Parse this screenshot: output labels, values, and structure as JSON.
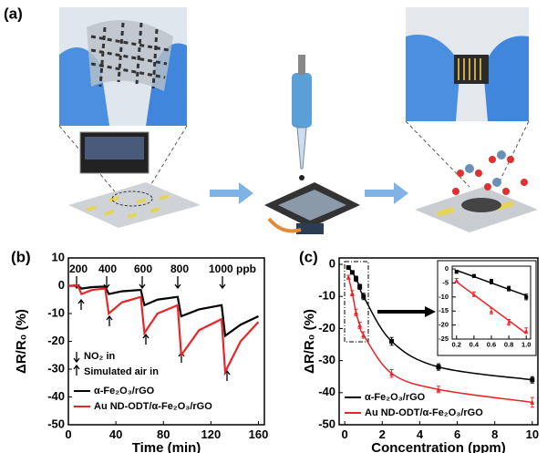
{
  "panels": {
    "a": "(a)",
    "b": "(b)",
    "c": "(c)"
  },
  "chart_data": [
    {
      "type": "line",
      "xlabel": "Time (min)",
      "ylabel": "ΔR/R₀ (%)",
      "x": [
        0,
        8,
        11,
        20,
        31,
        34,
        45,
        61,
        64,
        75,
        92,
        95,
        110,
        129,
        132,
        145,
        160
      ],
      "xlim": [
        0,
        165
      ],
      "xticks": [
        0,
        40,
        80,
        120,
        160
      ],
      "ylim": [
        -50,
        10
      ],
      "yticks": [
        10,
        0,
        -10,
        -20,
        -30,
        -40,
        -50
      ],
      "series": [
        {
          "name": "α-Fe₂O₃/rGO",
          "color": "#000000",
          "values": [
            0,
            0,
            -1,
            -0.5,
            -0.3,
            -3,
            -2,
            -1.5,
            -7,
            -5,
            -4,
            -11,
            -8.5,
            -7,
            -18,
            -14,
            -11
          ]
        },
        {
          "name": "Au ND-ODT/α-Fe₂O₃/rGO",
          "color": "#e8262a",
          "values": [
            0,
            0,
            -3,
            -1.5,
            -1,
            -10,
            -6,
            -4,
            -17,
            -10,
            -7,
            -25,
            -16,
            -12,
            -31,
            -20,
            -13
          ]
        }
      ],
      "annotations": [
        "200",
        "400",
        "600",
        "800",
        "1000 ppb"
      ],
      "arrow_legend": [
        "NO₂ in",
        "Simulated air in"
      ],
      "legend": "lower left"
    },
    {
      "type": "scatter",
      "xlabel": "Concentration (ppm)",
      "ylabel": "ΔR/R₀ (%)",
      "xlim": [
        -0.3,
        10.3
      ],
      "xticks": [
        0,
        2,
        4,
        6,
        8,
        10
      ],
      "ylim": [
        -50,
        2
      ],
      "yticks": [
        0,
        -10,
        -20,
        -30,
        -40,
        -50
      ],
      "series": [
        {
          "name": "α-Fe₂O₃/rGO",
          "color": "#000000",
          "x": [
            0.2,
            0.4,
            0.6,
            0.8,
            1,
            2.5,
            5,
            10
          ],
          "values": [
            -1,
            -2.5,
            -4.5,
            -7,
            -10,
            -24,
            -32,
            -36
          ],
          "errors": [
            0.5,
            0.5,
            0.8,
            0.8,
            1,
            1.2,
            1,
            1
          ]
        },
        {
          "name": "Au ND-ODT/α-Fe₂O₃/rGO",
          "color": "#e8262a",
          "x": [
            0.2,
            0.4,
            0.6,
            0.8,
            1,
            2.5,
            5,
            10
          ],
          "values": [
            -4,
            -9,
            -15,
            -19,
            -22,
            -34,
            -39,
            -43
          ],
          "errors": [
            0.6,
            0.8,
            1,
            1,
            1,
            1.2,
            1,
            1.5
          ]
        }
      ],
      "legend": "lower left",
      "inset": {
        "type": "scatter",
        "xlim": [
          0.15,
          1.05
        ],
        "xticks": [
          0.2,
          0.4,
          0.6,
          0.8,
          {
            "value": 1,
            "label": "1.0"
          }
        ],
        "ylim": [
          -25,
          1
        ],
        "yticks": [
          0,
          -5,
          -10,
          -15,
          -20,
          -25
        ],
        "series": [
          {
            "color": "#000000",
            "x": [
              0.2,
              0.4,
              0.6,
              0.8,
              1
            ],
            "values": [
              -1,
              -2.5,
              -4.5,
              -7,
              -10
            ],
            "errors": [
              0.5,
              0.5,
              0.8,
              0.8,
              1
            ]
          },
          {
            "color": "#e8262a",
            "x": [
              0.2,
              0.4,
              0.6,
              0.8,
              1
            ],
            "values": [
              -4,
              -9,
              -15,
              -19,
              -22
            ],
            "errors": [
              0.6,
              0.8,
              1,
              1,
              1
            ]
          }
        ]
      }
    }
  ]
}
